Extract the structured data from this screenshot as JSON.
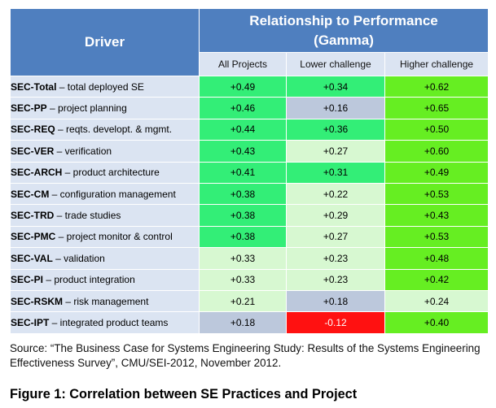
{
  "table": {
    "header": {
      "driver": "Driver",
      "relationship_line1": "Relationship to Performance",
      "relationship_line2": "(Gamma)",
      "columns": [
        "All Projects",
        "Lower challenge",
        "Higher challenge"
      ]
    },
    "rows": [
      {
        "code": "SEC-Total",
        "desc": " – total deployed SE",
        "values": [
          "+0.49",
          "+0.34",
          "+0.62"
        ]
      },
      {
        "code": "SEC-PP",
        "desc": " – project planning",
        "values": [
          "+0.46",
          "+0.16",
          "+0.65"
        ]
      },
      {
        "code": "SEC-REQ",
        "desc": " – reqts. developt. & mgmt.",
        "values": [
          "+0.44",
          "+0.36",
          "+0.50"
        ]
      },
      {
        "code": "SEC-VER",
        "desc": " – verification",
        "values": [
          "+0.43",
          "+0.27",
          "+0.60"
        ]
      },
      {
        "code": "SEC-ARCH",
        "desc": " – product architecture",
        "values": [
          "+0.41",
          "+0.31",
          "+0.49"
        ]
      },
      {
        "code": "SEC-CM",
        "desc": " – configuration management",
        "values": [
          "+0.38",
          "+0.22",
          "+0.53"
        ]
      },
      {
        "code": "SEC-TRD",
        "desc": " – trade studies",
        "values": [
          "+0.38",
          "+0.29",
          "+0.43"
        ]
      },
      {
        "code": "SEC-PMC",
        "desc": " – project monitor & control",
        "values": [
          "+0.38",
          "+0.27",
          "+0.53"
        ]
      },
      {
        "code": "SEC-VAL",
        "desc": " – validation",
        "values": [
          "+0.33",
          "+0.23",
          "+0.48"
        ]
      },
      {
        "code": "SEC-PI",
        "desc": " – product integration",
        "values": [
          "+0.33",
          "+0.23",
          "+0.42"
        ]
      },
      {
        "code": "SEC-RSKM",
        "desc": " – risk management",
        "values": [
          "+0.21",
          "+0.18",
          "+0.24"
        ]
      },
      {
        "code": "SEC-IPT",
        "desc": " – integrated product teams",
        "values": [
          "+0.18",
          "-0.12",
          "+0.40"
        ]
      }
    ],
    "colors": {
      "header_blue": "#4f7fbf",
      "light_blue": "#dbe4f2",
      "strong_green": "#66ee22",
      "medium_green": "#33ee77",
      "light_green": "#d7f8d1",
      "neutral_blue": "#bcc8dc",
      "red": "#ff1111"
    },
    "cell_colors": [
      [
        "#33ee77",
        "#33ee77",
        "#66ee22"
      ],
      [
        "#33ee77",
        "#bcc8dc",
        "#66ee22"
      ],
      [
        "#33ee77",
        "#33ee77",
        "#66ee22"
      ],
      [
        "#33ee77",
        "#d7f8d1",
        "#66ee22"
      ],
      [
        "#33ee77",
        "#33ee77",
        "#66ee22"
      ],
      [
        "#33ee77",
        "#d7f8d1",
        "#66ee22"
      ],
      [
        "#33ee77",
        "#d7f8d1",
        "#66ee22"
      ],
      [
        "#33ee77",
        "#d7f8d1",
        "#66ee22"
      ],
      [
        "#d7f8d1",
        "#d7f8d1",
        "#66ee22"
      ],
      [
        "#d7f8d1",
        "#d7f8d1",
        "#66ee22"
      ],
      [
        "#d7f8d1",
        "#bcc8dc",
        "#d7f8d1"
      ],
      [
        "#bcc8dc",
        "#ff1111",
        "#66ee22"
      ]
    ]
  },
  "source_text": "Source: “The Business Case for Systems Engineering Study: Results of the Systems Engineering Effectiveness Survey”, CMU/SEI-2012, November 2012.",
  "caption": "Figure 1: Correlation between SE Practices and Project"
}
